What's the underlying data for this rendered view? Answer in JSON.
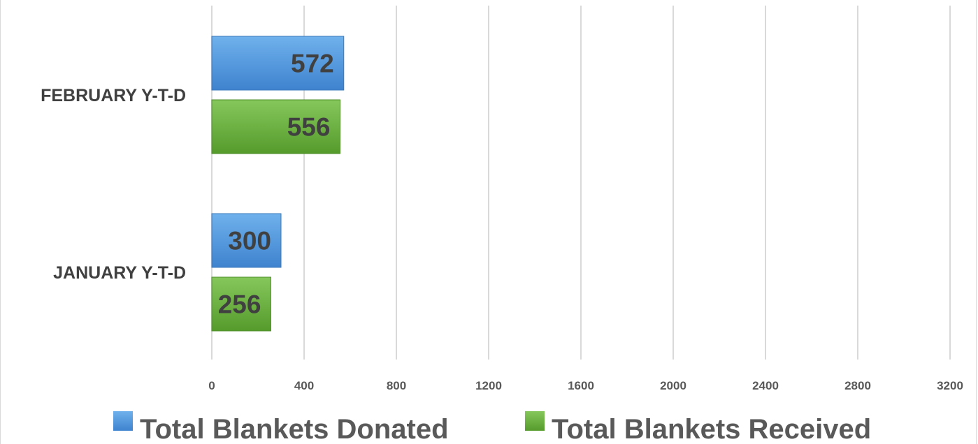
{
  "chart_data": {
    "type": "bar",
    "orientation": "horizontal",
    "categories": [
      "JANUARY Y-T-D",
      "FEBRUARY Y-T-D"
    ],
    "series": [
      {
        "name": "Total Blankets Donated",
        "values": [
          300,
          572
        ],
        "color": "#4a90d9"
      },
      {
        "name": "Total Blankets Received",
        "values": [
          256,
          556
        ],
        "color": "#6aae3a"
      }
    ],
    "xlim": [
      0,
      3200
    ],
    "xticks": [
      "0",
      "400",
      "800",
      "1200",
      "1600",
      "2000",
      "2400",
      "2800",
      "3200"
    ],
    "title": "",
    "xlabel": "",
    "ylabel": "",
    "grid": true,
    "legend_position": "bottom",
    "data_labels": true
  }
}
